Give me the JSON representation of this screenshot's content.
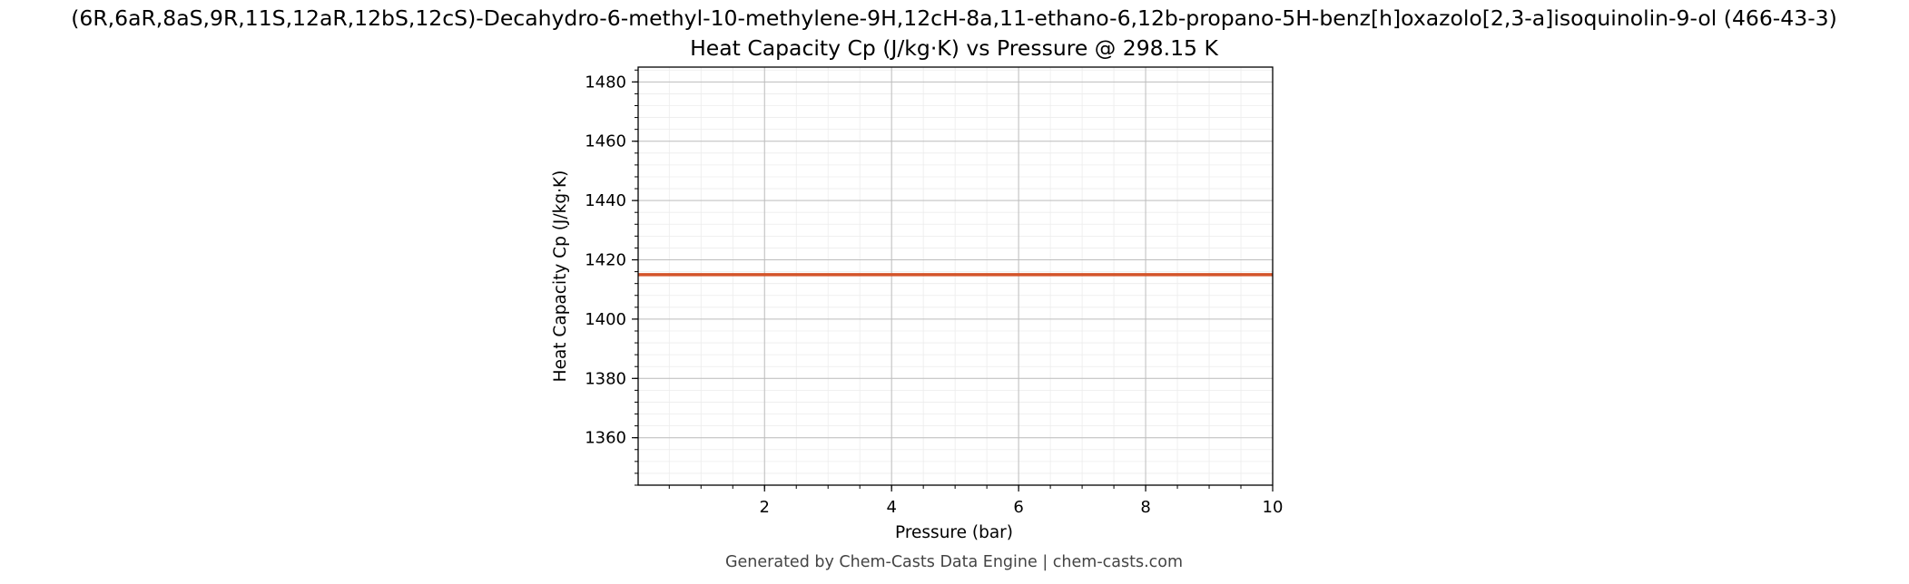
{
  "chart_data": {
    "type": "line",
    "title": "(6R,6aR,8aS,9R,11S,12aR,12bS,12cS)-Decahydro-6-methyl-10-methylene-9H,12cH-8a,11-ethano-6,12b-propano-5H-benz[h]oxazolo[2,3-a]isoquinolin-9-ol (466-43-3)",
    "subtitle": "Heat Capacity Cp (J/kg·K) vs Pressure @ 298.15 K",
    "xlabel": "Pressure (bar)",
    "ylabel": "Heat Capacity Cp (J/kg·K)",
    "xlim": [
      0.01,
      10
    ],
    "ylim": [
      1344,
      1485
    ],
    "x_ticks": [
      2,
      4,
      6,
      8,
      10
    ],
    "y_ticks": [
      1360,
      1380,
      1400,
      1420,
      1440,
      1460,
      1480
    ],
    "grid": true,
    "minor_grid": true,
    "series": [
      {
        "color": "#d4542a",
        "x": [
          0.01,
          1,
          2,
          3,
          4,
          5,
          6,
          7,
          8,
          9,
          10
        ],
        "y": [
          1415,
          1415,
          1415,
          1415,
          1415,
          1415,
          1415,
          1415,
          1415,
          1415,
          1415
        ]
      }
    ]
  },
  "footer": "Generated by Chem-Casts Data Engine | chem-casts.com"
}
